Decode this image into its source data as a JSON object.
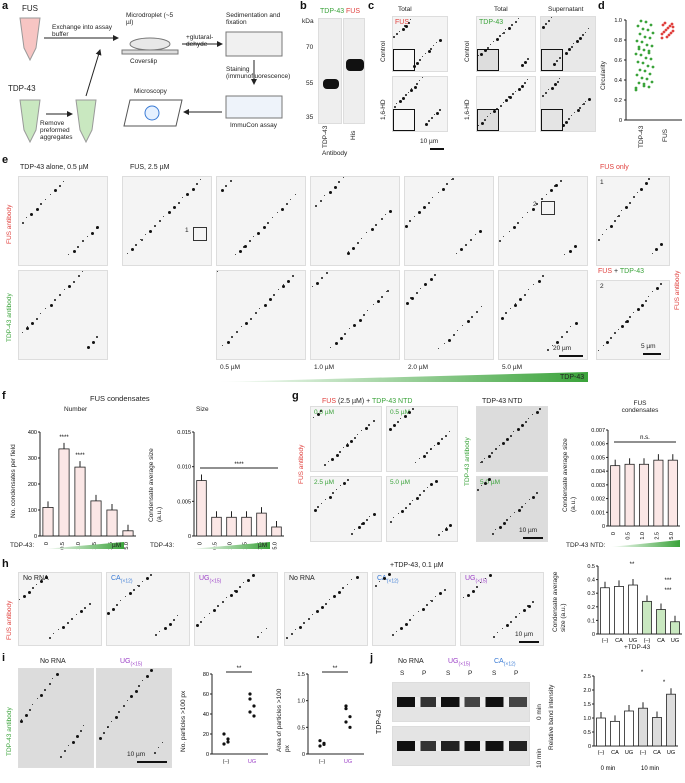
{
  "panels": {
    "a": "a",
    "b": "b",
    "c": "c",
    "d": "d",
    "e": "e",
    "f": "f",
    "g": "g",
    "h": "h",
    "i": "i",
    "j": "j"
  },
  "a": {
    "fus": "FUS",
    "tdp": "TDP-43",
    "remove": "Remove preformed aggregates",
    "exchange": "Exchange into assay buffer",
    "microdroplet": "Microdroplet (~5 µl)",
    "coverslip": "Coverslip",
    "glut": "+glutaral-dehyde",
    "sed": "Sedimentation and fixation",
    "staining": "Staining (immunofluorescence)",
    "microscopy": "Microscopy",
    "immucon": "ImmuCon assay"
  },
  "b": {
    "tdp": "TDP-43",
    "fus": "FUS",
    "kda": "kDa",
    "m70": "70",
    "m55": "55",
    "m35": "35",
    "lane1": "TDP-43",
    "lane2": "His",
    "antibody": "Antibody"
  },
  "c": {
    "total1": "Total",
    "total2": "Total",
    "supernatant": "Supernatant",
    "fus": "FUS",
    "tdp": "TDP-43",
    "control1": "Control",
    "hd1": "1,6-HD",
    "control2": "Control",
    "hd2": "1,6-HD",
    "scale": "10 µm"
  },
  "d": {
    "ylabel": "Circularity",
    "x1": "TDP-43",
    "x2": "FUS",
    "ticks": [
      "0",
      "0.2",
      "0.4",
      "0.6",
      "0.8",
      "1.0"
    ]
  },
  "e": {
    "tdp_alone": "TDP-43 alone, 0.5 µM",
    "fus": "FUS, 2.5 µM",
    "fus_ab": "FUS antibody",
    "tdp_ab": "TDP-43 antibody",
    "concs": [
      "0.5 µM",
      "1.0 µM",
      "2.0 µM",
      "5.0 µM"
    ],
    "gradient": "TDP-43",
    "scale": "20 µm",
    "fus_only": "FUS only",
    "fus_plus": "FUS",
    "plus": " + ",
    "tdp": "TDP-43",
    "scale2": "5 µm",
    "fus_ab_right": "FUS antibody",
    "box1": "1",
    "box2": "2",
    "in1": "1",
    "in2": "2"
  },
  "f": {
    "title": "FUS condensates",
    "number": "Number",
    "size": "Size",
    "ylabel1": "No. condensates per field",
    "ylabel2": "Condensate average size (a.u.)",
    "xlabel": "TDP-43:",
    "um": "µM",
    "cats": [
      "0",
      "0.5",
      "1.0",
      "1.5",
      "2.5",
      "5.0"
    ],
    "sig": "****",
    "yt1": [
      "0",
      "100",
      "200",
      "300",
      "400"
    ],
    "yt2": [
      "0",
      "0.005",
      "0.010",
      "0.015"
    ]
  },
  "g": {
    "fus": "FUS",
    "fus_conc": " (2.5 µM) + ",
    "tdp_ntd": "TDP-43 NTD",
    "ntd": "TDP-43 NTD",
    "fus_ab": "FUS antibody",
    "tdp_ab": "TDP-43 antibody",
    "c00": "0.0 µM",
    "c05": "0.5 µM",
    "c25": "2.5 µM",
    "c50": "5.0 µM",
    "c50b": "5.0 µM",
    "scale": "10 µm",
    "chart_title": "FUS condensates",
    "ylabel": "Condensate average size (a.u.)",
    "ns": "n.s.",
    "xlabel": "TDP-43 NTD:",
    "um": "µM",
    "cats": [
      "0",
      "0.5",
      "1.0",
      "2.5",
      "5.0"
    ],
    "yt": [
      "0",
      "0.001",
      "0.002",
      "0.003",
      "0.004",
      "0.005",
      "0.006",
      "0.007"
    ]
  },
  "h": {
    "plus_tdp": "+TDP-43, 0.1 µM",
    "norna1": "No RNA",
    "ca1": "CA",
    "ca1sub": "(×12)",
    "ug1": "UG",
    "ug1sub": "(×15)",
    "norna2": "No RNA",
    "ca2": "CA",
    "ca2sub": "(×12)",
    "ug2": "UG",
    "ug2sub": "(×15)",
    "fus_ab": "FUS antibody",
    "scale": "10 µm",
    "ylabel": "Condensate average size (a.u.)",
    "cats": [
      "(–)",
      "CA",
      "UG",
      "(–)",
      "CA",
      "UG"
    ],
    "plus": "+TDP-43",
    "s1": "**",
    "s2": "***",
    "s3": "***",
    "yt": [
      "0",
      "0.1",
      "0.2",
      "0.3",
      "0.4",
      "0.5"
    ]
  },
  "i": {
    "norna": "No RNA",
    "ug": "UG",
    "ugsub": "(×15)",
    "tdp_ab": "TDP-43 antibody",
    "scale": "10 µm",
    "ylabel1": "No. particles >100 px",
    "ylabel2": "Area of particles >100 px",
    "c1": "(–)",
    "c2": "UG",
    "c3": "(–)",
    "c4": "UG",
    "sig1": "**",
    "sig2": "**",
    "yt1": [
      "0",
      "20",
      "40",
      "60",
      "80"
    ],
    "yt2": [
      "0",
      "0.5",
      "1.0",
      "1.5"
    ]
  },
  "j": {
    "norna": "No RNA",
    "ug": "UG",
    "ugsub": "(×15)",
    "ca": "CA",
    "casub": "(×12)",
    "lanes": [
      "S",
      "P",
      "S",
      "P",
      "S",
      "P"
    ],
    "tdp": "TDP-43",
    "t0": "0 min",
    "t10": "10 min",
    "ylabel": "Relative band intensity",
    "cats": [
      "(–)",
      "CA",
      "UG",
      "(–)",
      "CA",
      "UG"
    ],
    "g0": "0 min",
    "g10": "10 min",
    "s1": "*",
    "s2": "*",
    "yt": [
      "0",
      "0.5",
      "1.0",
      "1.5",
      "2.0",
      "2.5"
    ]
  },
  "colors": {
    "red": "#e0403d",
    "green": "#3aa33a",
    "purple": "#9b3fc7",
    "blue": "#3a7bd5"
  }
}
